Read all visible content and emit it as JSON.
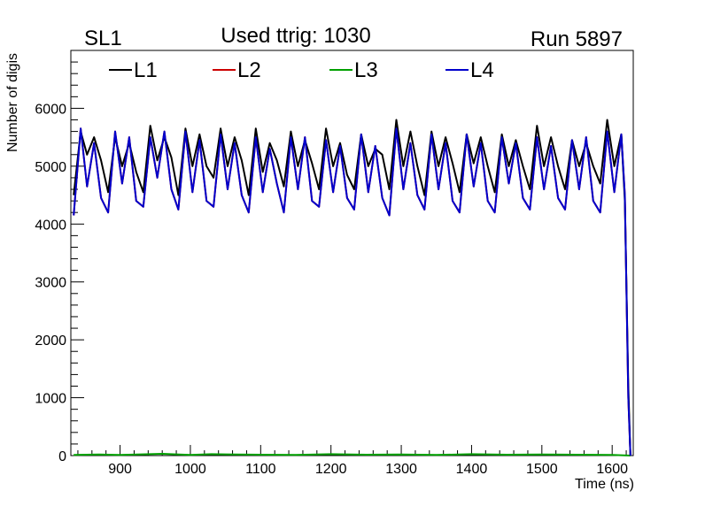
{
  "header": {
    "left_label": "SL1",
    "title": "Used ttrig: 1030",
    "run_label": "Run 5897"
  },
  "chart_data": {
    "type": "line",
    "xlabel": "Time (ns)",
    "ylabel": "Number of digis",
    "xlim": [
      830,
      1630
    ],
    "ylim": [
      0,
      7000
    ],
    "x_ticks": [
      900,
      1000,
      1100,
      1200,
      1300,
      1400,
      1500,
      1600
    ],
    "y_ticks": [
      0,
      1000,
      2000,
      3000,
      4000,
      5000,
      6000
    ],
    "legend_position": "top",
    "series": [
      {
        "name": "L1",
        "color": "#000000",
        "points": [
          [
            834,
            4500
          ],
          [
            844,
            5600
          ],
          [
            853,
            5200
          ],
          [
            863,
            5500
          ],
          [
            873,
            5100
          ],
          [
            883,
            4550
          ],
          [
            893,
            5500
          ],
          [
            903,
            5000
          ],
          [
            913,
            5400
          ],
          [
            923,
            4900
          ],
          [
            933,
            4550
          ],
          [
            943,
            5700
          ],
          [
            953,
            5100
          ],
          [
            963,
            5500
          ],
          [
            973,
            5150
          ],
          [
            983,
            4500
          ],
          [
            993,
            5650
          ],
          [
            1003,
            5000
          ],
          [
            1013,
            5550
          ],
          [
            1023,
            5000
          ],
          [
            1033,
            4800
          ],
          [
            1043,
            5650
          ],
          [
            1053,
            5000
          ],
          [
            1063,
            5500
          ],
          [
            1073,
            5100
          ],
          [
            1083,
            4500
          ],
          [
            1093,
            5650
          ],
          [
            1103,
            4900
          ],
          [
            1113,
            5400
          ],
          [
            1123,
            5100
          ],
          [
            1133,
            4650
          ],
          [
            1143,
            5600
          ],
          [
            1153,
            5000
          ],
          [
            1163,
            5450
          ],
          [
            1173,
            5050
          ],
          [
            1183,
            4600
          ],
          [
            1193,
            5650
          ],
          [
            1203,
            5000
          ],
          [
            1213,
            5400
          ],
          [
            1223,
            4850
          ],
          [
            1233,
            4600
          ],
          [
            1243,
            5550
          ],
          [
            1253,
            5000
          ],
          [
            1263,
            5300
          ],
          [
            1273,
            5200
          ],
          [
            1283,
            4600
          ],
          [
            1293,
            5800
          ],
          [
            1303,
            5000
          ],
          [
            1313,
            5600
          ],
          [
            1323,
            5000
          ],
          [
            1333,
            4500
          ],
          [
            1343,
            5600
          ],
          [
            1353,
            5000
          ],
          [
            1363,
            5500
          ],
          [
            1373,
            5050
          ],
          [
            1383,
            4550
          ],
          [
            1393,
            5550
          ],
          [
            1403,
            5050
          ],
          [
            1413,
            5500
          ],
          [
            1423,
            5000
          ],
          [
            1433,
            4550
          ],
          [
            1443,
            5550
          ],
          [
            1453,
            5000
          ],
          [
            1463,
            5450
          ],
          [
            1473,
            5000
          ],
          [
            1483,
            4600
          ],
          [
            1493,
            5700
          ],
          [
            1503,
            5000
          ],
          [
            1513,
            5500
          ],
          [
            1523,
            5000
          ],
          [
            1533,
            4600
          ],
          [
            1543,
            5450
          ],
          [
            1553,
            5000
          ],
          [
            1563,
            5400
          ],
          [
            1573,
            5000
          ],
          [
            1583,
            4700
          ],
          [
            1593,
            5800
          ],
          [
            1603,
            5000
          ],
          [
            1613,
            5550
          ],
          [
            1618,
            4400
          ],
          [
            1623,
            1200
          ],
          [
            1626,
            0
          ]
        ]
      },
      {
        "name": "L2",
        "color": "#cc0000",
        "points": [
          [
            834,
            4150
          ],
          [
            844,
            5650
          ],
          [
            853,
            4650
          ],
          [
            863,
            5400
          ],
          [
            873,
            4450
          ],
          [
            883,
            4200
          ],
          [
            893,
            5600
          ],
          [
            903,
            4700
          ],
          [
            913,
            5500
          ],
          [
            923,
            4400
          ],
          [
            933,
            4300
          ],
          [
            943,
            5500
          ],
          [
            953,
            4800
          ],
          [
            963,
            5600
          ],
          [
            973,
            4600
          ],
          [
            983,
            4250
          ],
          [
            993,
            5600
          ],
          [
            1003,
            4550
          ],
          [
            1013,
            5450
          ],
          [
            1023,
            4400
          ],
          [
            1033,
            4300
          ],
          [
            1043,
            5550
          ],
          [
            1053,
            4600
          ],
          [
            1063,
            5400
          ],
          [
            1073,
            4500
          ],
          [
            1083,
            4200
          ],
          [
            1093,
            5500
          ],
          [
            1103,
            4550
          ],
          [
            1113,
            5300
          ],
          [
            1123,
            4700
          ],
          [
            1133,
            4200
          ],
          [
            1143,
            5500
          ],
          [
            1153,
            4600
          ],
          [
            1163,
            5500
          ],
          [
            1173,
            4400
          ],
          [
            1183,
            4300
          ],
          [
            1193,
            5450
          ],
          [
            1203,
            4550
          ],
          [
            1213,
            5350
          ],
          [
            1223,
            4450
          ],
          [
            1233,
            4250
          ],
          [
            1243,
            5550
          ],
          [
            1253,
            4550
          ],
          [
            1263,
            5350
          ],
          [
            1273,
            4450
          ],
          [
            1283,
            4150
          ],
          [
            1293,
            5650
          ],
          [
            1303,
            4600
          ],
          [
            1313,
            5400
          ],
          [
            1323,
            4500
          ],
          [
            1333,
            4250
          ],
          [
            1343,
            5550
          ],
          [
            1353,
            4600
          ],
          [
            1363,
            5400
          ],
          [
            1373,
            4400
          ],
          [
            1383,
            4200
          ],
          [
            1393,
            5550
          ],
          [
            1403,
            4650
          ],
          [
            1413,
            5400
          ],
          [
            1423,
            4400
          ],
          [
            1433,
            4200
          ],
          [
            1443,
            5500
          ],
          [
            1453,
            4700
          ],
          [
            1463,
            5400
          ],
          [
            1473,
            4450
          ],
          [
            1483,
            4250
          ],
          [
            1493,
            5500
          ],
          [
            1503,
            4600
          ],
          [
            1513,
            5350
          ],
          [
            1523,
            4450
          ],
          [
            1533,
            4250
          ],
          [
            1543,
            5450
          ],
          [
            1553,
            4600
          ],
          [
            1563,
            5500
          ],
          [
            1573,
            4400
          ],
          [
            1583,
            4200
          ],
          [
            1593,
            5600
          ],
          [
            1603,
            4550
          ],
          [
            1613,
            5550
          ],
          [
            1618,
            4500
          ],
          [
            1623,
            1000
          ],
          [
            1626,
            0
          ]
        ]
      },
      {
        "name": "L3",
        "color": "#00a000",
        "points": [
          [
            834,
            10
          ],
          [
            870,
            20
          ],
          [
            900,
            10
          ],
          [
            960,
            30
          ],
          [
            1000,
            10
          ],
          [
            1030,
            25
          ],
          [
            1100,
            15
          ],
          [
            1150,
            10
          ],
          [
            1200,
            25
          ],
          [
            1250,
            15
          ],
          [
            1300,
            20
          ],
          [
            1350,
            10
          ],
          [
            1400,
            25
          ],
          [
            1450,
            15
          ],
          [
            1500,
            20
          ],
          [
            1550,
            15
          ],
          [
            1600,
            10
          ],
          [
            1626,
            0
          ]
        ]
      },
      {
        "name": "L4",
        "color": "#0000cc",
        "points": [
          [
            834,
            4150
          ],
          [
            844,
            5650
          ],
          [
            853,
            4650
          ],
          [
            863,
            5400
          ],
          [
            873,
            4450
          ],
          [
            883,
            4200
          ],
          [
            893,
            5600
          ],
          [
            903,
            4700
          ],
          [
            913,
            5500
          ],
          [
            923,
            4400
          ],
          [
            933,
            4300
          ],
          [
            943,
            5500
          ],
          [
            953,
            4800
          ],
          [
            963,
            5600
          ],
          [
            973,
            4600
          ],
          [
            983,
            4250
          ],
          [
            993,
            5600
          ],
          [
            1003,
            4550
          ],
          [
            1013,
            5450
          ],
          [
            1023,
            4400
          ],
          [
            1033,
            4300
          ],
          [
            1043,
            5550
          ],
          [
            1053,
            4600
          ],
          [
            1063,
            5400
          ],
          [
            1073,
            4500
          ],
          [
            1083,
            4200
          ],
          [
            1093,
            5500
          ],
          [
            1103,
            4550
          ],
          [
            1113,
            5300
          ],
          [
            1123,
            4700
          ],
          [
            1133,
            4200
          ],
          [
            1143,
            5500
          ],
          [
            1153,
            4600
          ],
          [
            1163,
            5500
          ],
          [
            1173,
            4400
          ],
          [
            1183,
            4300
          ],
          [
            1193,
            5450
          ],
          [
            1203,
            4550
          ],
          [
            1213,
            5350
          ],
          [
            1223,
            4450
          ],
          [
            1233,
            4250
          ],
          [
            1243,
            5550
          ],
          [
            1253,
            4550
          ],
          [
            1263,
            5350
          ],
          [
            1273,
            4450
          ],
          [
            1283,
            4150
          ],
          [
            1293,
            5650
          ],
          [
            1303,
            4600
          ],
          [
            1313,
            5400
          ],
          [
            1323,
            4500
          ],
          [
            1333,
            4250
          ],
          [
            1343,
            5550
          ],
          [
            1353,
            4600
          ],
          [
            1363,
            5400
          ],
          [
            1373,
            4400
          ],
          [
            1383,
            4200
          ],
          [
            1393,
            5550
          ],
          [
            1403,
            4650
          ],
          [
            1413,
            5400
          ],
          [
            1423,
            4400
          ],
          [
            1433,
            4200
          ],
          [
            1443,
            5500
          ],
          [
            1453,
            4700
          ],
          [
            1463,
            5400
          ],
          [
            1473,
            4450
          ],
          [
            1483,
            4250
          ],
          [
            1493,
            5500
          ],
          [
            1503,
            4600
          ],
          [
            1513,
            5350
          ],
          [
            1523,
            4450
          ],
          [
            1533,
            4250
          ],
          [
            1543,
            5450
          ],
          [
            1553,
            4600
          ],
          [
            1563,
            5500
          ],
          [
            1573,
            4400
          ],
          [
            1583,
            4200
          ],
          [
            1593,
            5600
          ],
          [
            1603,
            4550
          ],
          [
            1613,
            5550
          ],
          [
            1618,
            4500
          ],
          [
            1623,
            1000
          ],
          [
            1626,
            0
          ]
        ]
      }
    ]
  }
}
